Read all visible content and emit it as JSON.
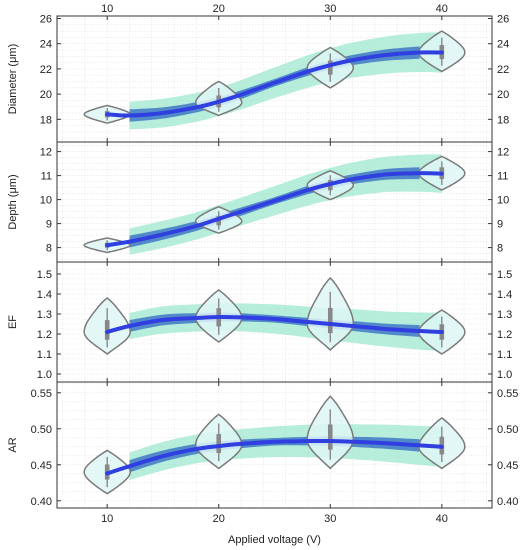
{
  "chart_data": {
    "type": "violin",
    "xlabel": "Applied voltage (V)",
    "xlim": [
      5.5,
      44.5
    ],
    "x_ticks": [
      10,
      20,
      30,
      40
    ],
    "x": [
      10,
      20,
      30,
      40
    ],
    "grid": true,
    "colors": {
      "fit_line": "#2f3fe0",
      "confidence_band": "#3a6fc4",
      "prediction_band": "#9ee8cf",
      "violin_fill": "#dff6f6",
      "violin_stroke": "#7a7a7a",
      "box": "#888888"
    },
    "panels": [
      {
        "ylabel": "Diameter (μm)",
        "ylim": [
          16.2,
          26.2
        ],
        "y_ticks": [
          18,
          20,
          22,
          24,
          26
        ],
        "medians": [
          18.4,
          19.3,
          22.1,
          23.3
        ],
        "violin_ranges": [
          [
            17.7,
            19.1
          ],
          [
            18.3,
            21.0
          ],
          [
            20.5,
            23.7
          ],
          [
            21.8,
            25.0
          ]
        ],
        "fit_x": [
          10,
          12,
          15,
          18,
          20,
          22,
          25,
          28,
          30,
          32,
          35,
          38,
          40
        ],
        "fit_y": [
          18.4,
          18.3,
          18.5,
          18.95,
          19.4,
          19.95,
          20.9,
          21.8,
          22.3,
          22.7,
          23.1,
          23.3,
          23.3
        ]
      },
      {
        "ylabel": "Depth (μm)",
        "ylim": [
          7.4,
          12.4
        ],
        "y_ticks": [
          8,
          9,
          10,
          11,
          12
        ],
        "medians": [
          8.1,
          9.1,
          10.6,
          11.1
        ],
        "violin_ranges": [
          [
            7.8,
            8.4
          ],
          [
            8.6,
            9.7
          ],
          [
            10.0,
            11.2
          ],
          [
            10.4,
            11.8
          ]
        ],
        "fit_x": [
          10,
          12,
          15,
          18,
          20,
          22,
          25,
          28,
          30,
          32,
          35,
          38,
          40
        ],
        "fit_y": [
          8.1,
          8.25,
          8.55,
          8.9,
          9.2,
          9.5,
          9.95,
          10.4,
          10.65,
          10.85,
          11.05,
          11.1,
          11.08
        ]
      },
      {
        "ylabel": "EF",
        "ylim": [
          0.96,
          1.56
        ],
        "y_ticks": [
          1.0,
          1.1,
          1.2,
          1.3,
          1.4,
          1.5
        ],
        "medians": [
          1.21,
          1.28,
          1.25,
          1.21
        ],
        "violin_ranges": [
          [
            1.1,
            1.38
          ],
          [
            1.16,
            1.42
          ],
          [
            1.12,
            1.48
          ],
          [
            1.1,
            1.32
          ]
        ],
        "fit_x": [
          10,
          12,
          15,
          18,
          20,
          22,
          25,
          28,
          30,
          32,
          35,
          38,
          40
        ],
        "fit_y": [
          1.21,
          1.24,
          1.27,
          1.28,
          1.285,
          1.283,
          1.275,
          1.26,
          1.25,
          1.24,
          1.225,
          1.215,
          1.21
        ]
      },
      {
        "ylabel": "AR",
        "ylim": [
          0.39,
          0.565
        ],
        "y_ticks": [
          0.4,
          0.45,
          0.5,
          0.55
        ],
        "medians": [
          0.44,
          0.478,
          0.485,
          0.475
        ],
        "violin_ranges": [
          [
            0.41,
            0.47
          ],
          [
            0.445,
            0.52
          ],
          [
            0.445,
            0.545
          ],
          [
            0.445,
            0.515
          ]
        ],
        "fit_x": [
          10,
          12,
          15,
          18,
          20,
          22,
          25,
          28,
          30,
          32,
          35,
          38,
          40
        ],
        "fit_y": [
          0.438,
          0.448,
          0.462,
          0.472,
          0.476,
          0.479,
          0.482,
          0.483,
          0.483,
          0.482,
          0.48,
          0.477,
          0.475
        ]
      }
    ]
  }
}
